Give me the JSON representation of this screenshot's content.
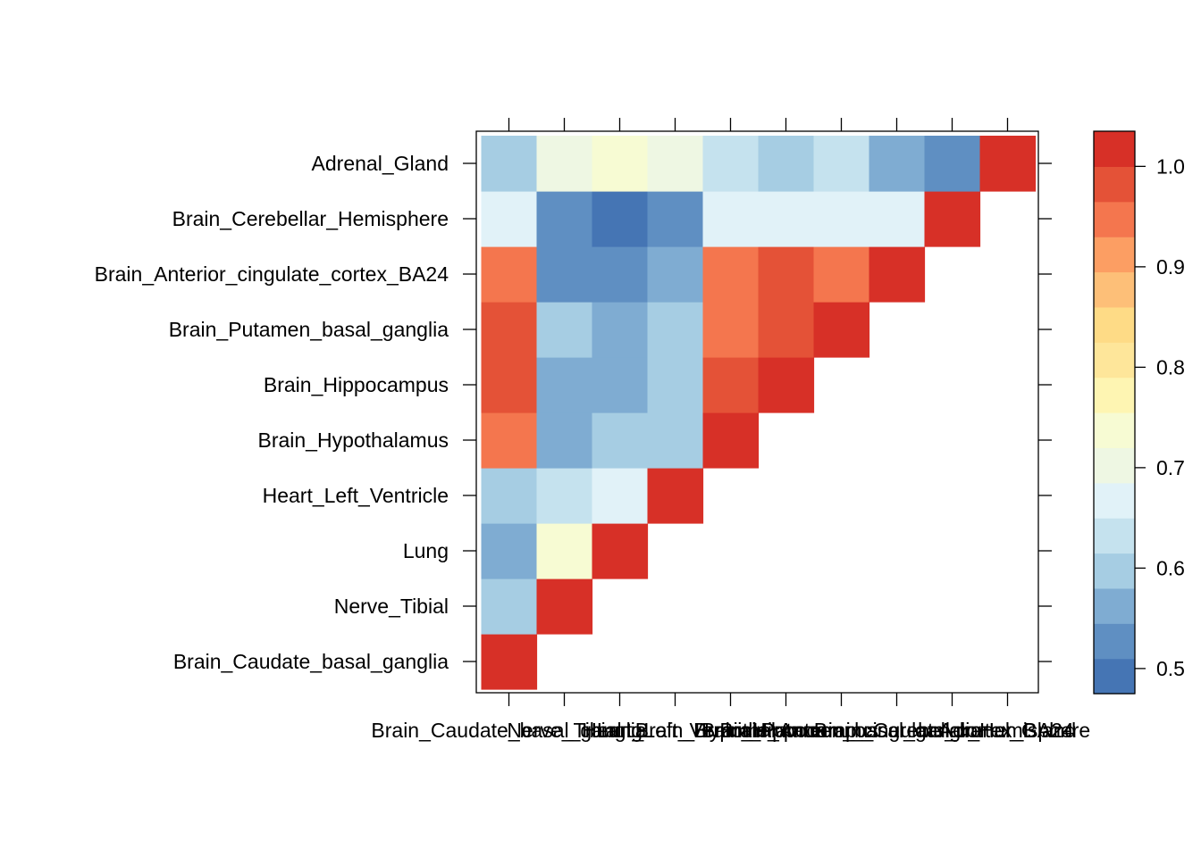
{
  "chart_data": {
    "type": "heatmap",
    "title": "",
    "xlabel": "",
    "ylabel": "",
    "categories": [
      "Brain_Caudate_basal_ganglia",
      "Nerve_Tibial",
      "Lung",
      "Heart_Left_Ventricle",
      "Brain_Hypothalamus",
      "Brain_Hippocampus",
      "Brain_Putamen_basal_ganglia",
      "Brain_Anterior_cingulate_cortex_BA24",
      "Brain_Cerebellar_Hemisphere",
      "Adrenal_Gland"
    ],
    "values": [
      [
        1.0,
        0.61,
        0.57,
        0.61,
        0.95,
        0.97,
        0.97,
        0.95,
        0.66,
        0.61
      ],
      [
        null,
        1.0,
        0.74,
        0.62,
        0.57,
        0.57,
        0.61,
        0.53,
        0.53,
        0.7
      ],
      [
        null,
        null,
        1.0,
        0.66,
        0.61,
        0.57,
        0.57,
        0.53,
        0.5,
        0.74
      ],
      [
        null,
        null,
        null,
        1.0,
        0.61,
        0.61,
        0.61,
        0.57,
        0.53,
        0.7
      ],
      [
        null,
        null,
        null,
        null,
        1.0,
        0.97,
        0.95,
        0.95,
        0.66,
        0.64
      ],
      [
        null,
        null,
        null,
        null,
        null,
        1.0,
        0.97,
        0.97,
        0.66,
        0.61
      ],
      [
        null,
        null,
        null,
        null,
        null,
        null,
        1.0,
        0.95,
        0.66,
        0.64
      ],
      [
        null,
        null,
        null,
        null,
        null,
        null,
        null,
        1.0,
        0.66,
        0.57
      ],
      [
        null,
        null,
        null,
        null,
        null,
        null,
        null,
        null,
        1.0,
        0.53
      ],
      [
        null,
        null,
        null,
        null,
        null,
        null,
        null,
        null,
        null,
        1.0
      ]
    ],
    "colorbar": {
      "min": 0.475,
      "max": 1.035,
      "ticks": [
        0.5,
        0.6,
        0.7,
        0.8,
        0.9,
        1.0
      ],
      "tick_labels": [
        "0.5",
        "0.6",
        "0.7",
        "0.8",
        "0.9",
        "1.0"
      ],
      "colors": [
        "#4575B4",
        "#5F8FC2",
        "#7FACD2",
        "#A6CDE3",
        "#C5E2EE",
        "#E1F2F8",
        "#EEF7E3",
        "#F7FBD3",
        "#FEF5B2",
        "#FEE69A",
        "#FEDB86",
        "#FDBF78",
        "#FC9E63",
        "#F4764E",
        "#E45237",
        "#D73027"
      ]
    },
    "grid": false,
    "legend": "right"
  }
}
